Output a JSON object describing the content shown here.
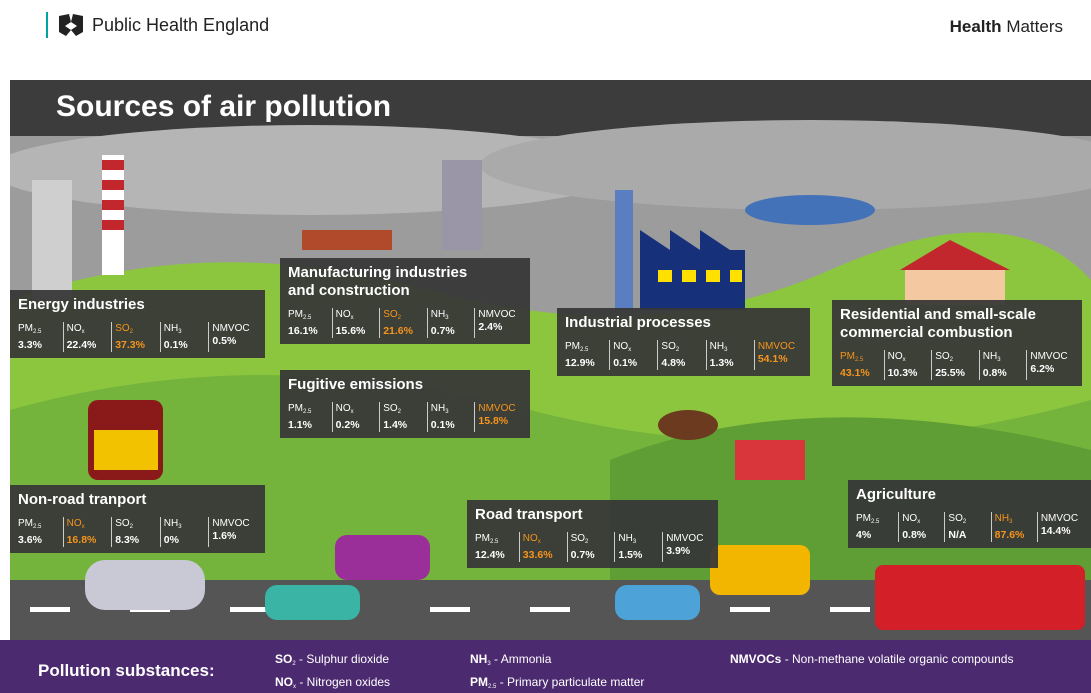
{
  "header": {
    "org": "Public Health England",
    "brand_bold": "Health",
    "brand_rest": "Matters"
  },
  "title": "Sources of air pollution",
  "pollutants": [
    {
      "main": "PM",
      "sub": "2.5"
    },
    {
      "main": "NO",
      "sub": "x"
    },
    {
      "main": "SO",
      "sub": "2"
    },
    {
      "main": "NH",
      "sub": "3"
    },
    {
      "main": "NMVOC"
    }
  ],
  "sources": [
    {
      "title": [
        "Energy industries"
      ],
      "values": [
        "3.3%",
        "22.4%",
        "37.3%",
        "0.1%",
        "0.5%"
      ],
      "highlight": 2
    },
    {
      "title": [
        "Manufacturing industries",
        "and construction"
      ],
      "values": [
        "16.1%",
        "15.6%",
        "21.6%",
        "0.7%",
        "2.4%"
      ],
      "highlight": 2
    },
    {
      "title": [
        "Industrial processes"
      ],
      "values": [
        "12.9%",
        "0.1%",
        "4.8%",
        "1.3%",
        "54.1%"
      ],
      "highlight": 4
    },
    {
      "title": [
        "Residential and small-scale",
        "commercial combustion"
      ],
      "values": [
        "43.1%",
        "10.3%",
        "25.5%",
        "0.8%",
        "6.2%"
      ],
      "highlight": 0
    },
    {
      "title": [
        "Fugitive emissions"
      ],
      "values": [
        "1.1%",
        "0.2%",
        "1.4%",
        "0.1%",
        "15.8%"
      ],
      "highlight": 4
    },
    {
      "title": [
        "Non-road tranport"
      ],
      "values": [
        "3.6%",
        "16.8%",
        "8.3%",
        "0%",
        "1.6%"
      ],
      "highlight": 1
    },
    {
      "title": [
        "Road transport"
      ],
      "values": [
        "12.4%",
        "33.6%",
        "0.7%",
        "1.5%",
        "3.9%"
      ],
      "highlight": 1
    },
    {
      "title": [
        "Agriculture"
      ],
      "values": [
        "4%",
        "0.8%",
        "N/A",
        "87.6%",
        "14.4%"
      ],
      "highlight": 3
    }
  ],
  "legend": {
    "label": "Pollution substances:",
    "items": [
      {
        "main": "SO",
        "sub": "2",
        "text": "- Sulphur dioxide"
      },
      {
        "main": "NO",
        "sub": "x",
        "text": "- Nitrogen oxides"
      },
      {
        "main": "NH",
        "sub": "3",
        "text": "- Ammonia"
      },
      {
        "main": "PM",
        "sub": "2.5",
        "text": "- Primary particulate matter"
      },
      {
        "main": "NMVOCs",
        "text": "- Non-methane volatile organic compounds"
      }
    ]
  }
}
